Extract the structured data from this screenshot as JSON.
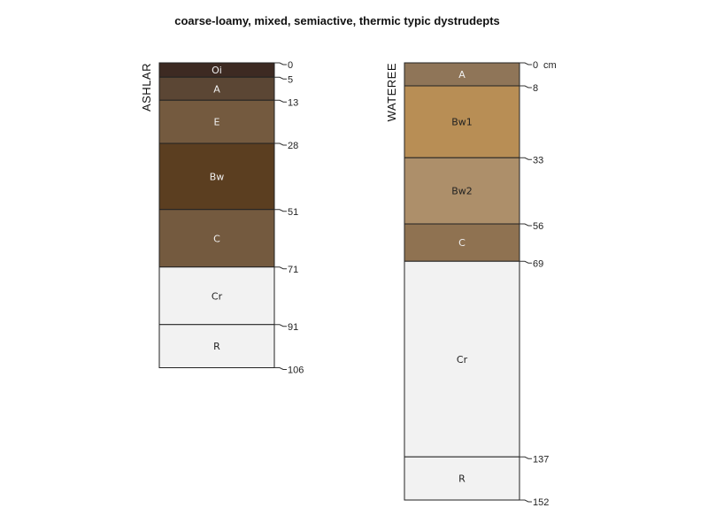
{
  "title": "coarse-loamy, mixed, semiactive, thermic typic dystrudepts",
  "unit_label": "cm",
  "profiles": [
    {
      "name": "ASHLAR",
      "horizons": [
        {
          "name": "Oi",
          "top": 0,
          "bottom": 5,
          "color": "#3d2a22",
          "text_color": "#f0f0f0"
        },
        {
          "name": "A",
          "top": 5,
          "bottom": 13,
          "color": "#5b4634",
          "text_color": "#f0f0f0"
        },
        {
          "name": "E",
          "top": 13,
          "bottom": 28,
          "color": "#745a3f",
          "text_color": "#f0f0f0"
        },
        {
          "name": "Bw",
          "top": 28,
          "bottom": 51,
          "color": "#5b3e20",
          "text_color": "#f0f0f0"
        },
        {
          "name": "C",
          "top": 51,
          "bottom": 71,
          "color": "#745a3f",
          "text_color": "#f0f0f0"
        },
        {
          "name": "Cr",
          "top": 71,
          "bottom": 91,
          "color": "#f2f2f2",
          "text_color": "#222222"
        },
        {
          "name": "R",
          "top": 91,
          "bottom": 106,
          "color": "#f2f2f2",
          "text_color": "#222222"
        }
      ],
      "depth_labels": [
        "0",
        "5",
        "13",
        "28",
        "51",
        "71",
        "91",
        "106"
      ]
    },
    {
      "name": "WATEREE",
      "horizons": [
        {
          "name": "A",
          "top": 0,
          "bottom": 8,
          "color": "#8f7558",
          "text_color": "#f0f0f0"
        },
        {
          "name": "Bw1",
          "top": 8,
          "bottom": 33,
          "color": "#b88e55",
          "text_color": "#222222"
        },
        {
          "name": "Bw2",
          "top": 33,
          "bottom": 56,
          "color": "#ad8f6a",
          "text_color": "#222222"
        },
        {
          "name": "C",
          "top": 56,
          "bottom": 69,
          "color": "#8f7251",
          "text_color": "#f0f0f0"
        },
        {
          "name": "Cr",
          "top": 69,
          "bottom": 137,
          "color": "#f2f2f2",
          "text_color": "#222222"
        },
        {
          "name": "R",
          "top": 137,
          "bottom": 152,
          "color": "#f2f2f2",
          "text_color": "#222222"
        }
      ],
      "depth_labels": [
        "0",
        "8",
        "33",
        "56",
        "69",
        "137",
        "152"
      ]
    }
  ]
}
